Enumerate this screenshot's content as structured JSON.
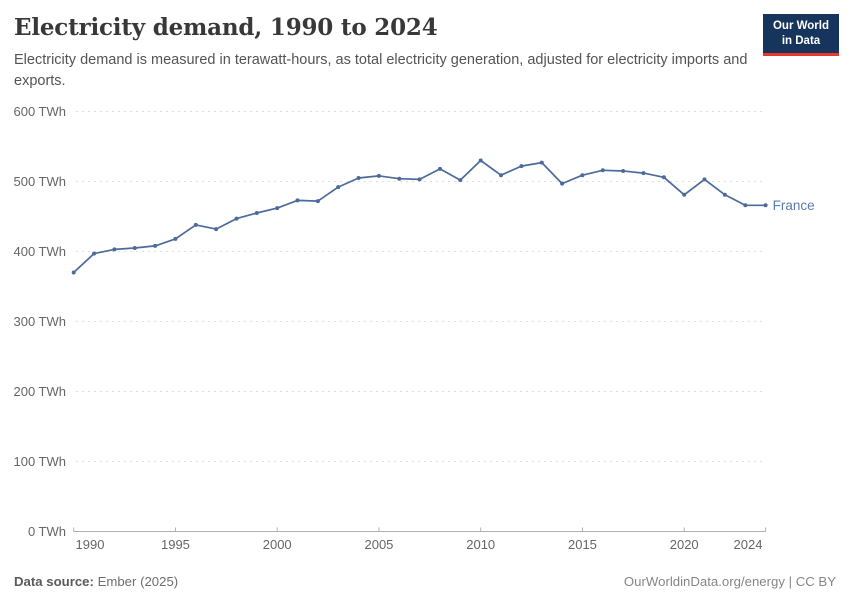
{
  "header": {
    "title": "Electricity demand, 1990 to 2024",
    "subtitle": "Electricity demand is measured in terawatt-hours, as total electricity generation, adjusted for electricity imports and exports.",
    "logo": {
      "line1": "Our World",
      "line2": "in Data",
      "bg": "#17355c",
      "accent": "#e6392f"
    }
  },
  "chart_data": {
    "type": "line",
    "title": "Electricity demand, 1990 to 2024",
    "unit": "TWh",
    "xlabel": "",
    "ylabel": "",
    "xlim": [
      1990,
      2024
    ],
    "ylim": [
      0,
      600
    ],
    "grid": "horizontal-dashed",
    "legend_position": "end-of-line-label",
    "xticks": {
      "values": [
        1990,
        1995,
        2000,
        2005,
        2010,
        2015,
        2020,
        2024
      ],
      "labels": [
        "1990",
        "1995",
        "2000",
        "2005",
        "2010",
        "2015",
        "2020",
        "2024"
      ]
    },
    "yticks": {
      "values": [
        0,
        100,
        200,
        300,
        400,
        500,
        600
      ],
      "labels": [
        "0 TWh",
        "100 TWh",
        "200 TWh",
        "300 TWh",
        "400 TWh",
        "500 TWh",
        "600 TWh"
      ]
    },
    "x": [
      1990,
      1991,
      1992,
      1993,
      1994,
      1995,
      1996,
      1997,
      1998,
      1999,
      2000,
      2001,
      2002,
      2003,
      2004,
      2005,
      2006,
      2007,
      2008,
      2009,
      2010,
      2011,
      2012,
      2013,
      2014,
      2015,
      2016,
      2017,
      2018,
      2019,
      2020,
      2021,
      2022,
      2023,
      2024
    ],
    "series": [
      {
        "name": "France",
        "color": "#4c6a9c",
        "values": [
          370,
          397,
          403,
          405,
          408,
          418,
          438,
          432,
          447,
          455,
          462,
          473,
          472,
          492,
          505,
          508,
          504,
          503,
          518,
          502,
          530,
          509,
          522,
          527,
          497,
          509,
          516,
          515,
          512,
          506,
          481,
          503,
          481,
          466,
          466
        ]
      }
    ],
    "colors": {
      "grid": "#dddddd",
      "axis": "#b0b0b0",
      "tick_label": "#666666",
      "entity_label": "#5b7bb5"
    }
  },
  "footer": {
    "source_label": "Data source:",
    "source_value": "Ember (2025)",
    "credit": "OurWorldinData.org/energy | CC BY"
  }
}
